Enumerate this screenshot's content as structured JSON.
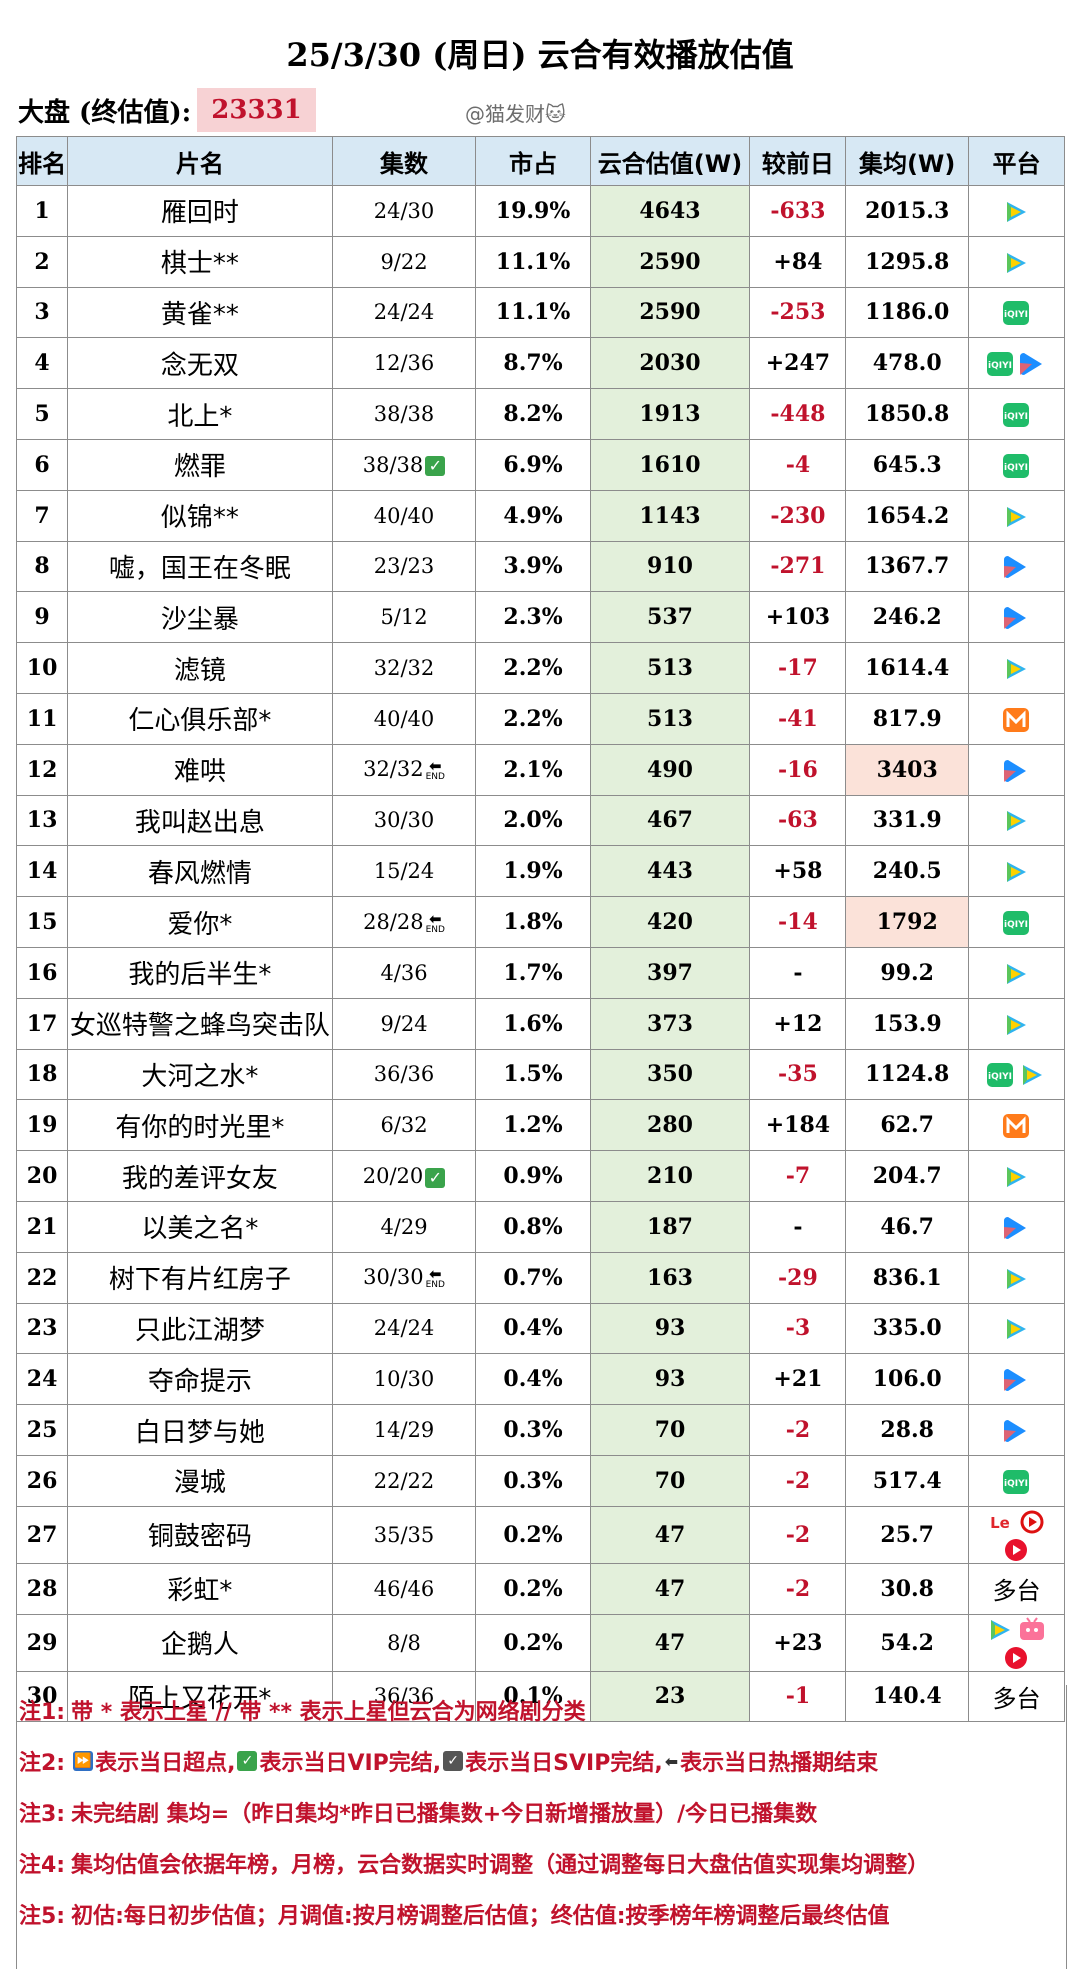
{
  "title": "25/3/30 (周日) 云合有效播放估值",
  "market": {
    "label": "大盘 (终估值):",
    "value": "23331"
  },
  "watermark": "@猫发财🐱",
  "headers": [
    "排名",
    "片名",
    "集数",
    "市占",
    "云合估值(W)",
    "较前日",
    "集均(W)",
    "平台"
  ],
  "rows": [
    {
      "rank": "1",
      "name": "雁回时",
      "eps": "24/30",
      "mark": "",
      "share": "19.9%",
      "est": "4643",
      "delta": "-633",
      "avg": "2015.3",
      "plat": [
        "tencent"
      ],
      "plat_text": ""
    },
    {
      "rank": "2",
      "name": "棋士**",
      "eps": "9/22",
      "mark": "",
      "share": "11.1%",
      "est": "2590",
      "delta": "+84",
      "avg": "1295.8",
      "plat": [
        "tencent"
      ],
      "plat_text": ""
    },
    {
      "rank": "3",
      "name": "黄雀**",
      "eps": "24/24",
      "mark": "",
      "share": "11.1%",
      "est": "2590",
      "delta": "-253",
      "avg": "1186.0",
      "plat": [
        "iqiyi"
      ],
      "plat_text": ""
    },
    {
      "rank": "4",
      "name": "念无双",
      "eps": "12/36",
      "mark": "",
      "share": "8.7%",
      "est": "2030",
      "delta": "+247",
      "avg": "478.0",
      "plat": [
        "iqiyi",
        "youku"
      ],
      "plat_text": ""
    },
    {
      "rank": "5",
      "name": "北上*",
      "eps": "38/38",
      "mark": "",
      "share": "8.2%",
      "est": "1913",
      "delta": "-448",
      "avg": "1850.8",
      "plat": [
        "iqiyi"
      ],
      "plat_text": ""
    },
    {
      "rank": "6",
      "name": "燃罪",
      "eps": "38/38",
      "mark": "vip",
      "share": "6.9%",
      "est": "1610",
      "delta": "-4",
      "avg": "645.3",
      "plat": [
        "iqiyi"
      ],
      "plat_text": ""
    },
    {
      "rank": "7",
      "name": "似锦**",
      "eps": "40/40",
      "mark": "",
      "share": "4.9%",
      "est": "1143",
      "delta": "-230",
      "avg": "1654.2",
      "plat": [
        "tencent"
      ],
      "plat_text": ""
    },
    {
      "rank": "8",
      "name": "嘘，国王在冬眠",
      "eps": "23/23",
      "mark": "",
      "share": "3.9%",
      "est": "910",
      "delta": "-271",
      "avg": "1367.7",
      "plat": [
        "youku"
      ],
      "plat_text": ""
    },
    {
      "rank": "9",
      "name": "沙尘暴",
      "eps": "5/12",
      "mark": "",
      "share": "2.3%",
      "est": "537",
      "delta": "+103",
      "avg": "246.2",
      "plat": [
        "youku"
      ],
      "plat_text": ""
    },
    {
      "rank": "10",
      "name": "滤镜",
      "eps": "32/32",
      "mark": "",
      "share": "2.2%",
      "est": "513",
      "delta": "-17",
      "avg": "1614.4",
      "plat": [
        "tencent"
      ],
      "plat_text": ""
    },
    {
      "rank": "11",
      "name": "仁心俱乐部*",
      "eps": "40/40",
      "mark": "",
      "share": "2.2%",
      "est": "513",
      "delta": "-41",
      "avg": "817.9",
      "plat": [
        "mango"
      ],
      "plat_text": ""
    },
    {
      "rank": "12",
      "name": "难哄",
      "eps": "32/32",
      "mark": "end",
      "share": "2.1%",
      "est": "490",
      "delta": "-16",
      "avg": "3403",
      "avg_hl": true,
      "plat": [
        "youku"
      ],
      "plat_text": ""
    },
    {
      "rank": "13",
      "name": "我叫赵出息",
      "eps": "30/30",
      "mark": "",
      "share": "2.0%",
      "est": "467",
      "delta": "-63",
      "avg": "331.9",
      "plat": [
        "tencent"
      ],
      "plat_text": ""
    },
    {
      "rank": "14",
      "name": "春风燃情",
      "eps": "15/24",
      "mark": "",
      "share": "1.9%",
      "est": "443",
      "delta": "+58",
      "avg": "240.5",
      "plat": [
        "tencent"
      ],
      "plat_text": ""
    },
    {
      "rank": "15",
      "name": "爱你*",
      "eps": "28/28",
      "mark": "end",
      "share": "1.8%",
      "est": "420",
      "delta": "-14",
      "avg": "1792",
      "avg_hl": true,
      "plat": [
        "iqiyi"
      ],
      "plat_text": ""
    },
    {
      "rank": "16",
      "name": "我的后半生*",
      "eps": "4/36",
      "mark": "",
      "share": "1.7%",
      "est": "397",
      "delta": "-",
      "avg": "99.2",
      "plat": [
        "tencent"
      ],
      "plat_text": ""
    },
    {
      "rank": "17",
      "name": "女巡特警之蜂鸟突击队",
      "eps": "9/24",
      "mark": "",
      "share": "1.6%",
      "est": "373",
      "delta": "+12",
      "avg": "153.9",
      "plat": [
        "tencent"
      ],
      "plat_text": ""
    },
    {
      "rank": "18",
      "name": "大河之水*",
      "eps": "36/36",
      "mark": "",
      "share": "1.5%",
      "est": "350",
      "delta": "-35",
      "avg": "1124.8",
      "plat": [
        "iqiyi",
        "tencent"
      ],
      "plat_text": ""
    },
    {
      "rank": "19",
      "name": "有你的时光里*",
      "eps": "6/32",
      "mark": "",
      "share": "1.2%",
      "est": "280",
      "delta": "+184",
      "avg": "62.7",
      "plat": [
        "mango"
      ],
      "plat_text": ""
    },
    {
      "rank": "20",
      "name": "我的差评女友",
      "eps": "20/20",
      "mark": "vip",
      "share": "0.9%",
      "est": "210",
      "delta": "-7",
      "avg": "204.7",
      "plat": [
        "tencent"
      ],
      "plat_text": ""
    },
    {
      "rank": "21",
      "name": "以美之名*",
      "eps": "4/29",
      "mark": "",
      "share": "0.8%",
      "est": "187",
      "delta": "-",
      "avg": "46.7",
      "plat": [
        "youku"
      ],
      "plat_text": ""
    },
    {
      "rank": "22",
      "name": "树下有片红房子",
      "eps": "30/30",
      "mark": "end",
      "share": "0.7%",
      "est": "163",
      "delta": "-29",
      "avg": "836.1",
      "plat": [
        "tencent"
      ],
      "plat_text": ""
    },
    {
      "rank": "23",
      "name": "只此江湖梦",
      "eps": "24/24",
      "mark": "",
      "share": "0.4%",
      "est": "93",
      "delta": "-3",
      "avg": "335.0",
      "plat": [
        "tencent"
      ],
      "plat_text": ""
    },
    {
      "rank": "24",
      "name": "夺命提示",
      "eps": "10/30",
      "mark": "",
      "share": "0.4%",
      "est": "93",
      "delta": "+21",
      "avg": "106.0",
      "plat": [
        "youku"
      ],
      "plat_text": ""
    },
    {
      "rank": "25",
      "name": "白日梦与她",
      "eps": "14/29",
      "mark": "",
      "share": "0.3%",
      "est": "70",
      "delta": "-2",
      "avg": "28.8",
      "plat": [
        "youku"
      ],
      "plat_text": ""
    },
    {
      "rank": "26",
      "name": "漫城",
      "eps": "22/22",
      "mark": "",
      "share": "0.3%",
      "est": "70",
      "delta": "-2",
      "avg": "517.4",
      "plat": [
        "iqiyi"
      ],
      "plat_text": ""
    },
    {
      "rank": "27",
      "name": "铜鼓密码",
      "eps": "35/35",
      "mark": "",
      "share": "0.2%",
      "est": "47",
      "delta": "-2",
      "avg": "25.7",
      "plat": [
        "letv",
        "cctv",
        "redplay"
      ],
      "plat_text": ""
    },
    {
      "rank": "28",
      "name": "彩虹*",
      "eps": "46/46",
      "mark": "",
      "share": "0.2%",
      "est": "47",
      "delta": "-2",
      "avg": "30.8",
      "plat": [],
      "plat_text": "多台"
    },
    {
      "rank": "29",
      "name": "企鹅人",
      "eps": "8/8",
      "mark": "",
      "share": "0.2%",
      "est": "47",
      "delta": "+23",
      "avg": "54.2",
      "plat": [
        "tencent",
        "bilibili",
        "redplay"
      ],
      "plat_text": ""
    },
    {
      "rank": "30",
      "name": "陌上又花开*",
      "eps": "36/36",
      "mark": "",
      "share": "0.1%",
      "est": "23",
      "delta": "-1",
      "avg": "140.4",
      "plat": [],
      "plat_text": "多台"
    }
  ],
  "notes": {
    "n1": {
      "k": "注1:",
      "t": "带 * 表示上星 // 带 ** 表示上星但云合为网络剧分类"
    },
    "n2": {
      "k": "注2:",
      "a": "表示当日超点,",
      "b": "表示当日VIP完结,",
      "c": "表示当日SVIP完结,",
      "d": "表示当日热播期结束"
    },
    "n3": {
      "k": "注3:",
      "t": "未完结剧 集均=（昨日集均*昨日已播集数+今日新增播放量）/今日已播集数"
    },
    "n4": {
      "k": "注4:",
      "t": "集均估值会依据年榜，月榜，云合数据实时调整（通过调整每日大盘估值实现集均调整）"
    },
    "n5": {
      "k": "注5:",
      "t": "初估:每日初步估值；月调值:按月榜调整后估值；终估值:按季榜年榜调整后最终估值"
    }
  },
  "icons": {
    "tencent": "tencent-video-icon",
    "iqiyi": "iqiyi-icon",
    "youku": "youku-icon",
    "mango": "mango-tv-icon",
    "letv": "letv-icon",
    "cctv": "cctv-icon",
    "redplay": "red-play-icon",
    "bilibili": "bilibili-icon"
  }
}
